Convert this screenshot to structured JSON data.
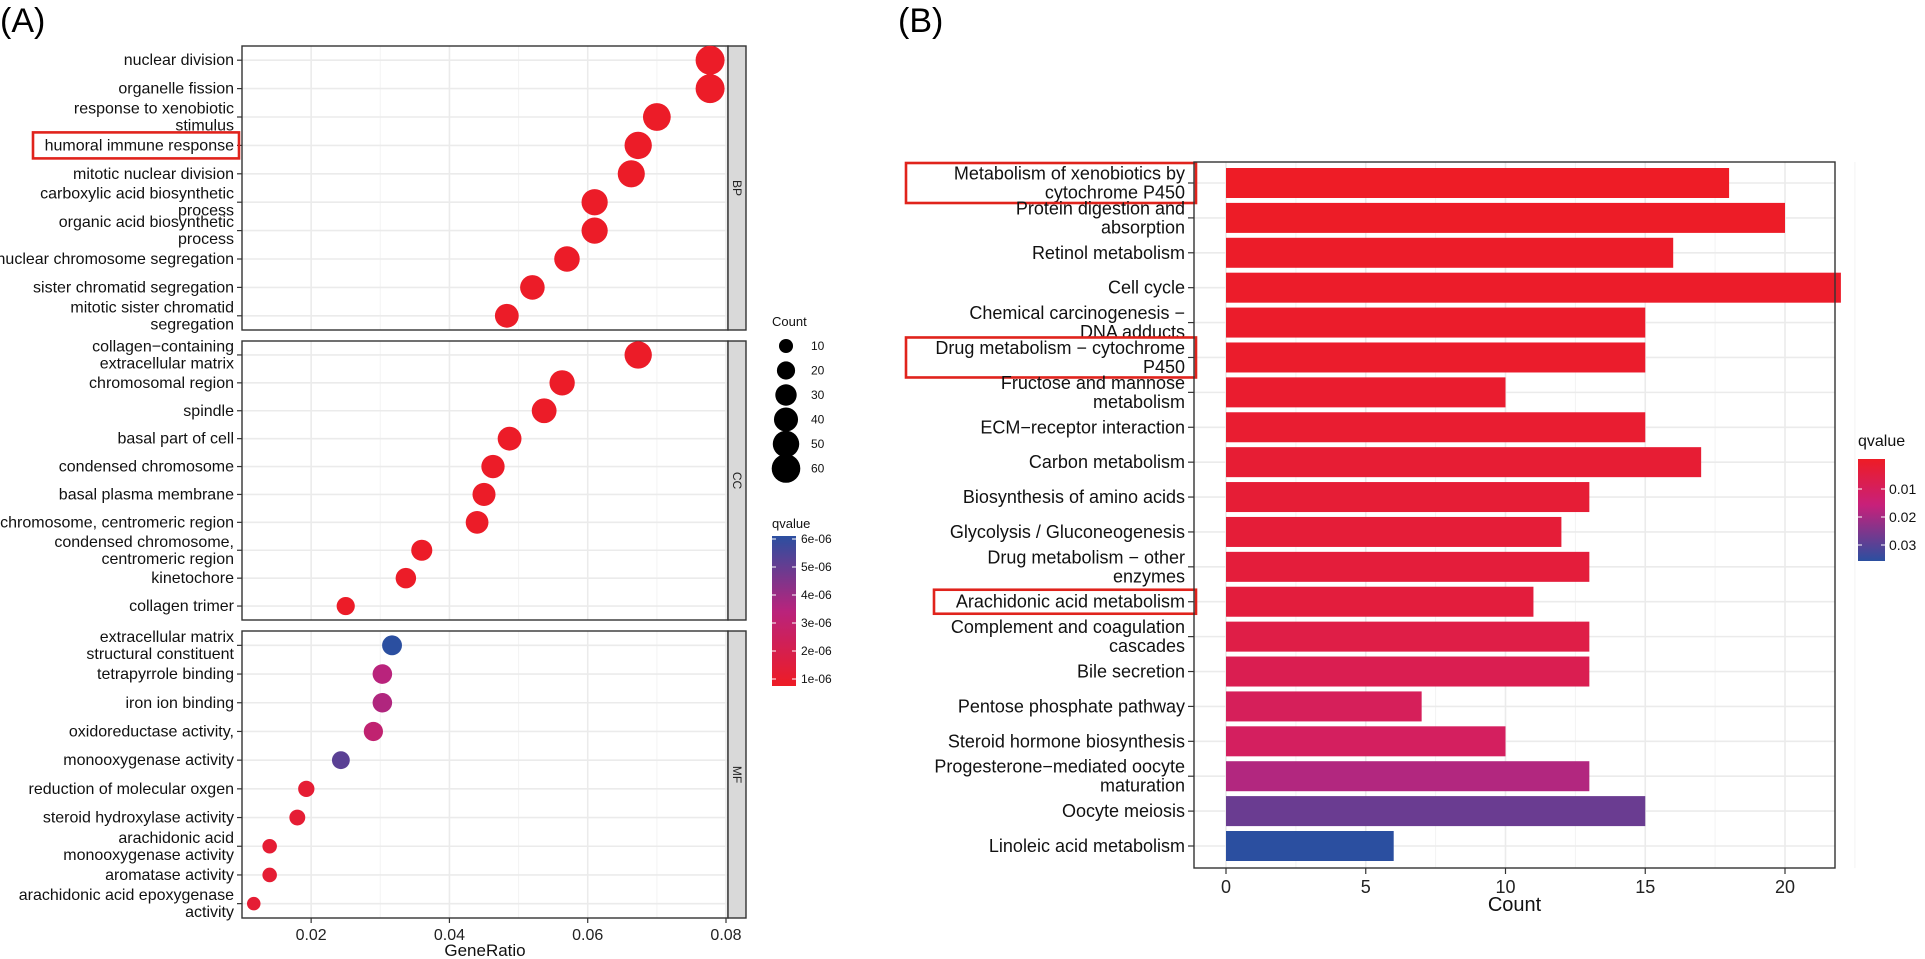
{
  "panels": {
    "a_label": "(A)",
    "b_label": "(B)"
  },
  "chart_data": [
    {
      "type": "scatter",
      "panel": "(A)",
      "xlabel": "GeneRatio",
      "ylabel": "",
      "xlim": [
        0.01,
        0.08
      ],
      "x_ticks": [
        "0.02",
        "0.04",
        "0.06",
        "0.08"
      ],
      "size_legend": {
        "title": "Count",
        "values": [
          10,
          20,
          30,
          40,
          50,
          60
        ]
      },
      "color_legend": {
        "title": "qvalue",
        "labels": [
          "6e-06",
          "5e-06",
          "4e-06",
          "3e-06",
          "2e-06",
          "1e-06"
        ],
        "low_color": "#ee1c25",
        "mid_color": "#b9237c",
        "high_color": "#2b4fa0"
      },
      "facets": [
        {
          "name": "BP",
          "terms": [
            {
              "lines": [
                "nuclear division"
              ],
              "x": 0.0777,
              "count": 62,
              "qvalue": 1e-07
            },
            {
              "lines": [
                "organelle fission"
              ],
              "x": 0.0777,
              "count": 62,
              "qvalue": 1e-07
            },
            {
              "lines": [
                "response to xenobiotic",
                "stimulus"
              ],
              "x": 0.07,
              "count": 56,
              "qvalue": 1e-07
            },
            {
              "lines": [
                "humoral immune response"
              ],
              "x": 0.0673,
              "count": 54,
              "qvalue": 1e-07,
              "highlighted": true
            },
            {
              "lines": [
                "mitotic nuclear division"
              ],
              "x": 0.0663,
              "count": 53,
              "qvalue": 1e-07
            },
            {
              "lines": [
                "carboxylic acid biosynthetic",
                "process"
              ],
              "x": 0.061,
              "count": 49,
              "qvalue": 1e-07
            },
            {
              "lines": [
                "organic acid biosynthetic",
                "process"
              ],
              "x": 0.061,
              "count": 49,
              "qvalue": 1e-07
            },
            {
              "lines": [
                "nuclear chromosome segregation"
              ],
              "x": 0.057,
              "count": 46,
              "qvalue": 1e-07
            },
            {
              "lines": [
                "sister chromatid segregation"
              ],
              "x": 0.052,
              "count": 42,
              "qvalue": 1e-07
            },
            {
              "lines": [
                "mitotic sister chromatid",
                "segregation"
              ],
              "x": 0.0483,
              "count": 39,
              "qvalue": 1e-07
            }
          ]
        },
        {
          "name": "CC",
          "terms": [
            {
              "lines": [
                "collagen−containing",
                "extracellular matrix"
              ],
              "x": 0.0673,
              "count": 54,
              "qvalue": 1e-07
            },
            {
              "lines": [
                "chromosomal region"
              ],
              "x": 0.0563,
              "count": 45,
              "qvalue": 1e-07
            },
            {
              "lines": [
                "spindle"
              ],
              "x": 0.0537,
              "count": 43,
              "qvalue": 1e-07
            },
            {
              "lines": [
                "basal part of cell"
              ],
              "x": 0.0487,
              "count": 39,
              "qvalue": 1e-07
            },
            {
              "lines": [
                "condensed chromosome"
              ],
              "x": 0.0463,
              "count": 37,
              "qvalue": 1e-07
            },
            {
              "lines": [
                "basal plasma membrane"
              ],
              "x": 0.045,
              "count": 36,
              "qvalue": 1e-07
            },
            {
              "lines": [
                "chromosome, centromeric region"
              ],
              "x": 0.044,
              "count": 35,
              "qvalue": 1e-07
            },
            {
              "lines": [
                "condensed chromosome,",
                "centromeric region"
              ],
              "x": 0.036,
              "count": 29,
              "qvalue": 1e-07
            },
            {
              "lines": [
                "kinetochore"
              ],
              "x": 0.0337,
              "count": 27,
              "qvalue": 1e-07
            },
            {
              "lines": [
                "collagen trimer"
              ],
              "x": 0.025,
              "count": 20,
              "qvalue": 1e-07
            }
          ]
        },
        {
          "name": "MF",
          "terms": [
            {
              "lines": [
                "extracellular matrix",
                "structural constituent"
              ],
              "x": 0.0317,
              "count": 25,
              "qvalue": 6e-06
            },
            {
              "lines": [
                "tetrapyrrole binding"
              ],
              "x": 0.0303,
              "count": 24,
              "qvalue": 3e-06
            },
            {
              "lines": [
                "iron ion binding"
              ],
              "x": 0.0303,
              "count": 24,
              "qvalue": 3.2e-06
            },
            {
              "lines": [
                "oxidoreductase activity,"
              ],
              "x": 0.029,
              "count": 23,
              "qvalue": 2.6e-06
            },
            {
              "lines": [
                "monooxygenase activity"
              ],
              "x": 0.0243,
              "count": 19,
              "qvalue": 5e-06
            },
            {
              "lines": [
                "reduction of molecular oxgen"
              ],
              "x": 0.0193,
              "count": 15,
              "qvalue": 5e-07
            },
            {
              "lines": [
                "steroid hydroxylase activity"
              ],
              "x": 0.018,
              "count": 14,
              "qvalue": 5e-07
            },
            {
              "lines": [
                "arachidonic acid",
                "monooxygenase activity"
              ],
              "x": 0.014,
              "count": 11,
              "qvalue": 5e-07
            },
            {
              "lines": [
                "aromatase activity"
              ],
              "x": 0.014,
              "count": 11,
              "qvalue": 5e-07
            },
            {
              "lines": [
                "arachidonic acid epoxygenase",
                "activity"
              ],
              "x": 0.0117,
              "count": 9,
              "qvalue": 5e-07
            }
          ]
        }
      ]
    },
    {
      "type": "bar",
      "panel": "(B)",
      "orientation": "horizontal",
      "xlabel": "Count",
      "ylabel": "",
      "xlim": [
        0,
        23
      ],
      "x_ticks": [
        "0",
        "5",
        "10",
        "15",
        "20"
      ],
      "color_legend": {
        "title": "qvalue",
        "labels": [
          "0.01",
          "0.02",
          "0.03"
        ],
        "low_color": "#ee1c25",
        "mid_color": "#c8207a",
        "high_color": "#2b4fa0"
      },
      "bars": [
        {
          "lines": [
            "Metabolism of xenobiotics by",
            "cytochrome P450"
          ],
          "value": 18,
          "qvalue": 0.0002,
          "highlighted": true
        },
        {
          "lines": [
            "Protein digestion and",
            "absorption"
          ],
          "value": 20,
          "qvalue": 0.0005
        },
        {
          "lines": [
            "Retinol metabolism"
          ],
          "value": 16,
          "qvalue": 0.0008
        },
        {
          "lines": [
            "Cell cycle"
          ],
          "value": 22,
          "qvalue": 0.001
        },
        {
          "lines": [
            "Chemical carcinogenesis −",
            "DNA adducts"
          ],
          "value": 15,
          "qvalue": 0.0012
        },
        {
          "lines": [
            "Drug metabolism − cytochrome",
            "P450"
          ],
          "value": 15,
          "qvalue": 0.0015,
          "highlighted": true
        },
        {
          "lines": [
            "Fructose and mannose",
            "metabolism"
          ],
          "value": 10,
          "qvalue": 0.002
        },
        {
          "lines": [
            "ECM−receptor interaction"
          ],
          "value": 15,
          "qvalue": 0.0025
        },
        {
          "lines": [
            "Carbon metabolism"
          ],
          "value": 17,
          "qvalue": 0.003
        },
        {
          "lines": [
            "Biosynthesis of amino acids"
          ],
          "value": 13,
          "qvalue": 0.0035
        },
        {
          "lines": [
            "Glycolysis / Gluconeogenesis"
          ],
          "value": 12,
          "qvalue": 0.004
        },
        {
          "lines": [
            "Drug metabolism − other",
            "enzymes"
          ],
          "value": 13,
          "qvalue": 0.0045
        },
        {
          "lines": [
            "Arachidonic acid metabolism"
          ],
          "value": 11,
          "qvalue": 0.005,
          "highlighted": true
        },
        {
          "lines": [
            "Complement and coagulation",
            "cascades"
          ],
          "value": 13,
          "qvalue": 0.007
        },
        {
          "lines": [
            "Bile secretion"
          ],
          "value": 13,
          "qvalue": 0.009
        },
        {
          "lines": [
            "Pentose phosphate pathway"
          ],
          "value": 7,
          "qvalue": 0.011
        },
        {
          "lines": [
            "Steroid hormone biosynthesis"
          ],
          "value": 10,
          "qvalue": 0.012
        },
        {
          "lines": [
            "Progesterone−mediated oocyte",
            "maturation"
          ],
          "value": 13,
          "qvalue": 0.02
        },
        {
          "lines": [
            "Oocyte meiosis"
          ],
          "value": 15,
          "qvalue": 0.028
        },
        {
          "lines": [
            "Linoleic acid metabolism"
          ],
          "value": 6,
          "qvalue": 0.035
        }
      ]
    }
  ]
}
